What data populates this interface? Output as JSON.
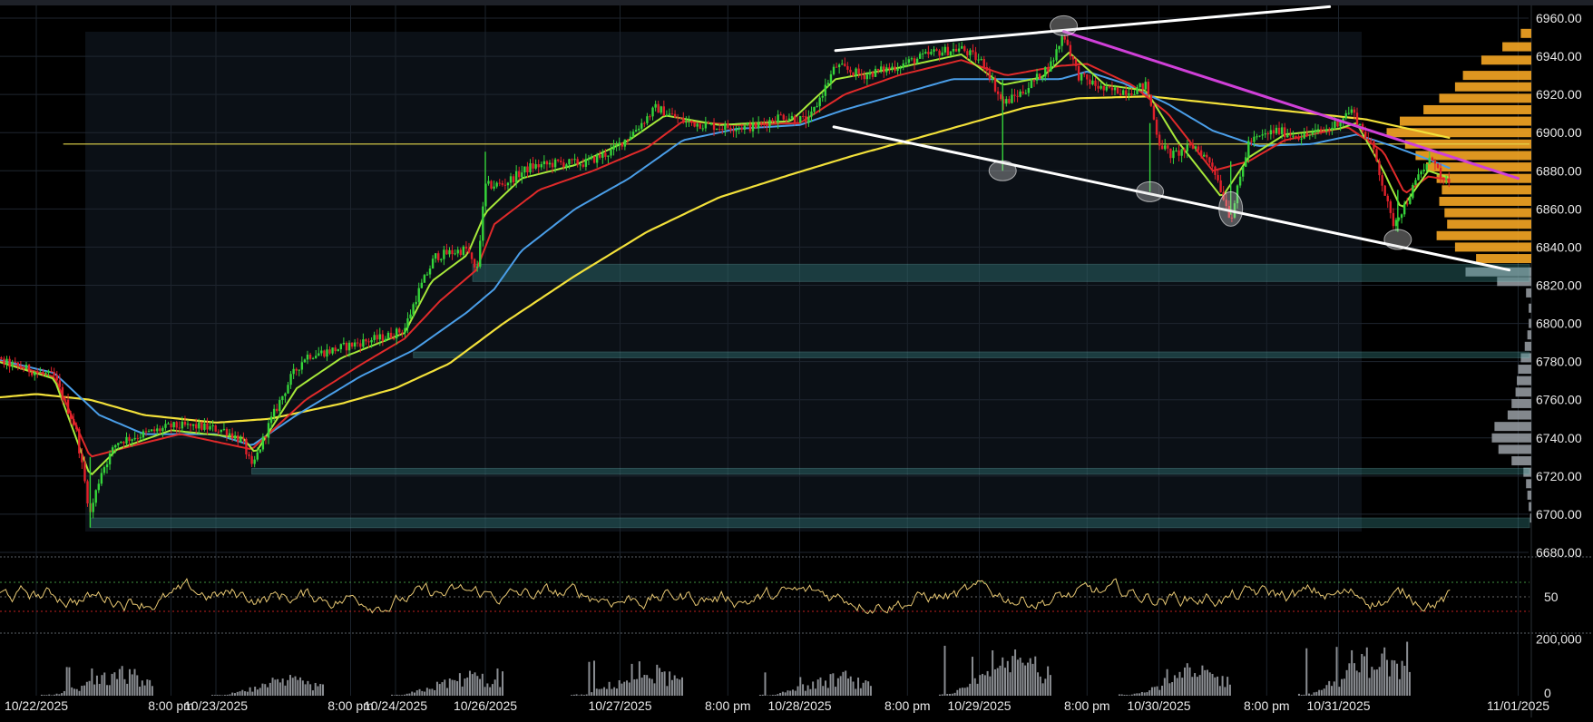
{
  "chart_data": {
    "type": "candlestick",
    "price_axis": {
      "range": [
        6680,
        6965
      ],
      "ticks": [
        "6960.00",
        "6940.00",
        "6920.00",
        "6900.00",
        "6880.00",
        "6860.00",
        "6840.00",
        "6820.00",
        "6800.00",
        "6780.00",
        "6760.00",
        "6740.00",
        "6720.00",
        "6700.00",
        "6680.00"
      ]
    },
    "rsi_axis": {
      "range": [
        12,
        90
      ],
      "ticks": [
        "50"
      ],
      "upper_level": 66,
      "lower_level": 34
    },
    "volume_axis": {
      "range": [
        0,
        215000
      ],
      "ticks": [
        "200,000",
        "0"
      ]
    },
    "time_axis": {
      "range": [
        -0.35,
        10.0
      ],
      "labels": [
        {
          "t": 0.0,
          "text": "10/22/2025"
        },
        {
          "t": 0.75,
          "text": "8:00 pm"
        },
        {
          "t": 1.0,
          "text": "10/23/2025"
        },
        {
          "t": 1.75,
          "text": "8:00 pm"
        },
        {
          "t": 2.0,
          "text": "10/24/2025"
        },
        {
          "t": 2.5,
          "text": "10/26/2025"
        },
        {
          "t": 3.25,
          "text": "10/27/2025"
        },
        {
          "t": 3.85,
          "text": "8:00 pm"
        },
        {
          "t": 4.25,
          "text": "10/28/2025"
        },
        {
          "t": 4.85,
          "text": "8:00 pm"
        },
        {
          "t": 5.25,
          "text": "10/29/2025"
        },
        {
          "t": 5.85,
          "text": "8:00 pm"
        },
        {
          "t": 6.25,
          "text": "10/30/2025"
        },
        {
          "t": 6.85,
          "text": "8:00 pm"
        },
        {
          "t": 7.25,
          "text": "10/31/2025"
        },
        {
          "t": 8.25,
          "text": "11/01/2025"
        }
      ]
    },
    "price_path": [
      [
        -0.35,
        6785
      ],
      [
        -0.2,
        6780
      ],
      [
        -0.05,
        6776
      ],
      [
        0.1,
        6772
      ],
      [
        0.22,
        6745
      ],
      [
        0.3,
        6700
      ],
      [
        0.36,
        6722
      ],
      [
        0.45,
        6738
      ],
      [
        0.6,
        6742
      ],
      [
        0.75,
        6746
      ],
      [
        0.9,
        6746
      ],
      [
        1.05,
        6744
      ],
      [
        1.15,
        6738
      ],
      [
        1.2,
        6724
      ],
      [
        1.3,
        6748
      ],
      [
        1.42,
        6772
      ],
      [
        1.5,
        6783
      ],
      [
        1.65,
        6786
      ],
      [
        1.8,
        6790
      ],
      [
        1.95,
        6793
      ],
      [
        2.05,
        6797
      ],
      [
        2.12,
        6815
      ],
      [
        2.22,
        6835
      ],
      [
        2.3,
        6837
      ],
      [
        2.4,
        6839
      ],
      [
        2.45,
        6825
      ],
      [
        2.5,
        6872
      ],
      [
        2.6,
        6873
      ],
      [
        2.75,
        6882
      ],
      [
        2.9,
        6884
      ],
      [
        3.05,
        6884
      ],
      [
        3.2,
        6890
      ],
      [
        3.32,
        6900
      ],
      [
        3.45,
        6913
      ],
      [
        3.6,
        6906
      ],
      [
        3.8,
        6903
      ],
      [
        4.0,
        6903
      ],
      [
        4.15,
        6909
      ],
      [
        4.3,
        6906
      ],
      [
        4.45,
        6935
      ],
      [
        4.6,
        6930
      ],
      [
        4.8,
        6935
      ],
      [
        5.0,
        6942
      ],
      [
        5.15,
        6944
      ],
      [
        5.28,
        6936
      ],
      [
        5.38,
        6915
      ],
      [
        5.5,
        6922
      ],
      [
        5.65,
        6936
      ],
      [
        5.72,
        6952
      ],
      [
        5.8,
        6930
      ],
      [
        5.95,
        6922
      ],
      [
        6.1,
        6922
      ],
      [
        6.18,
        6925
      ],
      [
        6.25,
        6895
      ],
      [
        6.32,
        6888
      ],
      [
        6.45,
        6893
      ],
      [
        6.55,
        6883
      ],
      [
        6.65,
        6855
      ],
      [
        6.75,
        6895
      ],
      [
        6.9,
        6901
      ],
      [
        7.05,
        6898
      ],
      [
        7.2,
        6902
      ],
      [
        7.32,
        6912
      ],
      [
        7.45,
        6890
      ],
      [
        7.55,
        6852
      ],
      [
        7.62,
        6862
      ],
      [
        7.7,
        6878
      ],
      [
        7.78,
        6888
      ],
      [
        7.82,
        6875
      ],
      [
        7.88,
        6872
      ]
    ],
    "ema_fast": [
      [
        -0.35,
        6784
      ],
      [
        0.1,
        6771
      ],
      [
        0.3,
        6720
      ],
      [
        0.45,
        6734
      ],
      [
        0.75,
        6744
      ],
      [
        1.15,
        6740
      ],
      [
        1.22,
        6732
      ],
      [
        1.45,
        6766
      ],
      [
        1.7,
        6782
      ],
      [
        2.05,
        6795
      ],
      [
        2.2,
        6822
      ],
      [
        2.4,
        6836
      ],
      [
        2.5,
        6858
      ],
      [
        2.7,
        6876
      ],
      [
        3.0,
        6883
      ],
      [
        3.3,
        6896
      ],
      [
        3.5,
        6909
      ],
      [
        3.8,
        6904
      ],
      [
        4.2,
        6906
      ],
      [
        4.45,
        6928
      ],
      [
        4.8,
        6934
      ],
      [
        5.15,
        6941
      ],
      [
        5.38,
        6925
      ],
      [
        5.6,
        6929
      ],
      [
        5.75,
        6942
      ],
      [
        5.95,
        6925
      ],
      [
        6.18,
        6922
      ],
      [
        6.35,
        6896
      ],
      [
        6.6,
        6866
      ],
      [
        6.75,
        6887
      ],
      [
        6.95,
        6899
      ],
      [
        7.25,
        6902
      ],
      [
        7.35,
        6905
      ],
      [
        7.5,
        6880
      ],
      [
        7.6,
        6860
      ],
      [
        7.75,
        6880
      ],
      [
        7.88,
        6876
      ]
    ],
    "ema_mid": [
      [
        -0.35,
        6784
      ],
      [
        0.1,
        6772
      ],
      [
        0.3,
        6730
      ],
      [
        0.5,
        6735
      ],
      [
        0.8,
        6742
      ],
      [
        1.2,
        6734
      ],
      [
        1.5,
        6760
      ],
      [
        1.8,
        6778
      ],
      [
        2.05,
        6792
      ],
      [
        2.25,
        6812
      ],
      [
        2.45,
        6828
      ],
      [
        2.55,
        6852
      ],
      [
        2.8,
        6870
      ],
      [
        3.1,
        6880
      ],
      [
        3.4,
        6892
      ],
      [
        3.6,
        6906
      ],
      [
        3.9,
        6904
      ],
      [
        4.25,
        6905
      ],
      [
        4.5,
        6920
      ],
      [
        4.8,
        6930
      ],
      [
        5.15,
        6938
      ],
      [
        5.4,
        6930
      ],
      [
        5.7,
        6935
      ],
      [
        5.85,
        6936
      ],
      [
        6.1,
        6925
      ],
      [
        6.3,
        6910
      ],
      [
        6.55,
        6880
      ],
      [
        6.75,
        6885
      ],
      [
        6.95,
        6896
      ],
      [
        7.3,
        6903
      ],
      [
        7.5,
        6890
      ],
      [
        7.62,
        6868
      ],
      [
        7.75,
        6877
      ],
      [
        7.88,
        6875
      ]
    ],
    "ema_slow": [
      [
        -0.35,
        6784
      ],
      [
        0.1,
        6774
      ],
      [
        0.35,
        6752
      ],
      [
        0.6,
        6742
      ],
      [
        1.0,
        6742
      ],
      [
        1.2,
        6736
      ],
      [
        1.45,
        6752
      ],
      [
        1.8,
        6772
      ],
      [
        2.1,
        6786
      ],
      [
        2.4,
        6806
      ],
      [
        2.55,
        6818
      ],
      [
        2.7,
        6838
      ],
      [
        3.0,
        6860
      ],
      [
        3.3,
        6876
      ],
      [
        3.6,
        6896
      ],
      [
        3.9,
        6902
      ],
      [
        4.25,
        6904
      ],
      [
        4.5,
        6912
      ],
      [
        4.8,
        6920
      ],
      [
        5.1,
        6928
      ],
      [
        5.4,
        6928
      ],
      [
        5.7,
        6928
      ],
      [
        5.85,
        6932
      ],
      [
        6.05,
        6926
      ],
      [
        6.3,
        6915
      ],
      [
        6.55,
        6901
      ],
      [
        6.8,
        6893
      ],
      [
        7.1,
        6894
      ],
      [
        7.35,
        6899
      ],
      [
        7.55,
        6893
      ],
      [
        7.75,
        6886
      ],
      [
        7.88,
        6881
      ]
    ],
    "ma_long": [
      [
        -0.35,
        6760
      ],
      [
        0.0,
        6763
      ],
      [
        0.3,
        6760
      ],
      [
        0.6,
        6752
      ],
      [
        1.0,
        6748
      ],
      [
        1.3,
        6750
      ],
      [
        1.7,
        6758
      ],
      [
        2.0,
        6766
      ],
      [
        2.3,
        6779
      ],
      [
        2.6,
        6800
      ],
      [
        3.0,
        6825
      ],
      [
        3.4,
        6848
      ],
      [
        3.8,
        6866
      ],
      [
        4.2,
        6878
      ],
      [
        4.55,
        6888
      ],
      [
        4.9,
        6897
      ],
      [
        5.2,
        6905
      ],
      [
        5.5,
        6913
      ],
      [
        5.8,
        6918
      ],
      [
        6.2,
        6919
      ],
      [
        6.6,
        6915
      ],
      [
        7.0,
        6911
      ],
      [
        7.4,
        6907
      ],
      [
        7.88,
        6897
      ]
    ],
    "horizontal_line": {
      "price": 6894,
      "color": "#e6d84a"
    },
    "zones": [
      {
        "low": 6822,
        "high": 6831,
        "t_start": 2.43
      },
      {
        "low": 6782,
        "high": 6785,
        "t_start": 2.1
      },
      {
        "low": 6721,
        "high": 6724,
        "t_start": 1.2
      },
      {
        "low": 6693,
        "high": 6698,
        "t_start": 0.3
      }
    ],
    "trendlines": [
      {
        "color": "#ffffff",
        "from": [
          4.45,
          6943
        ],
        "to": [
          7.2,
          6966
        ]
      },
      {
        "color": "#ffffff",
        "from": [
          4.44,
          6903
        ],
        "to": [
          8.2,
          6828
        ]
      },
      {
        "color": "#d040d8",
        "from": [
          5.72,
          6953
        ],
        "to": [
          8.25,
          6876
        ]
      }
    ],
    "touch_points": [
      {
        "t": 5.72,
        "price": 6956
      },
      {
        "t": 5.38,
        "price": 6880
      },
      {
        "t": 6.2,
        "price": 6869
      },
      {
        "t": 6.65,
        "price": 6860
      },
      {
        "t": 7.58,
        "price": 6844
      }
    ],
    "volume_profile": {
      "orange": [
        [
          6952,
          8
        ],
        [
          6945,
          22
        ],
        [
          6938,
          38
        ],
        [
          6930,
          52
        ],
        [
          6924,
          58
        ],
        [
          6918,
          70
        ],
        [
          6912,
          82
        ],
        [
          6906,
          100
        ],
        [
          6900,
          110
        ],
        [
          6894,
          96
        ],
        [
          6888,
          88
        ],
        [
          6882,
          80
        ],
        [
          6876,
          72
        ],
        [
          6870,
          68
        ],
        [
          6864,
          70
        ],
        [
          6858,
          66
        ],
        [
          6852,
          64
        ],
        [
          6846,
          72
        ],
        [
          6840,
          58
        ],
        [
          6834,
          42
        ]
      ],
      "gray": [
        [
          6827,
          50
        ],
        [
          6822,
          26
        ],
        [
          6816,
          4
        ],
        [
          6808,
          2
        ],
        [
          6800,
          2
        ],
        [
          6794,
          3
        ],
        [
          6788,
          5
        ],
        [
          6782,
          8
        ],
        [
          6776,
          10
        ],
        [
          6770,
          11
        ],
        [
          6764,
          12
        ],
        [
          6758,
          15
        ],
        [
          6752,
          18
        ],
        [
          6746,
          28
        ],
        [
          6740,
          30
        ],
        [
          6734,
          25
        ],
        [
          6728,
          15
        ],
        [
          6722,
          6
        ],
        [
          6716,
          4
        ],
        [
          6710,
          3
        ],
        [
          6704,
          2
        ],
        [
          6698,
          1
        ]
      ]
    },
    "volume_clusters": [
      {
        "t": 0.35,
        "peak": 110000
      },
      {
        "t": 1.3,
        "peak": 75000
      },
      {
        "t": 2.3,
        "peak": 100000
      },
      {
        "t": 3.3,
        "peak": 125000
      },
      {
        "t": 4.35,
        "peak": 90000
      },
      {
        "t": 5.35,
        "peak": 185000
      },
      {
        "t": 6.35,
        "peak": 125000
      },
      {
        "t": 7.35,
        "peak": 200000
      }
    ]
  }
}
